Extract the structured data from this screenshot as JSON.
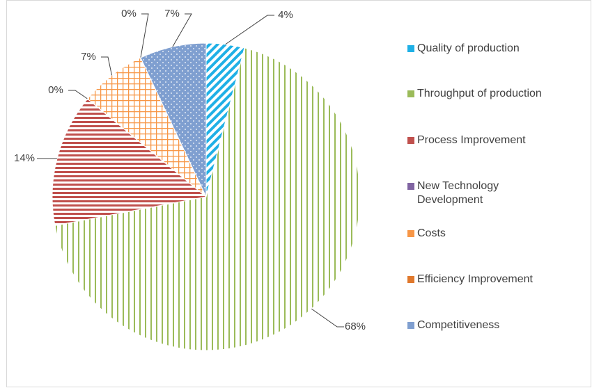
{
  "chart_data": {
    "type": "pie",
    "categories": [
      "Quality of production",
      "Throughput of production",
      "Process Improvement",
      "New Technology Development",
      "Costs",
      "Efficiency Improvement",
      "Competitiveness"
    ],
    "values": [
      4,
      68,
      14,
      0,
      7,
      0,
      7
    ],
    "value_labels": [
      "4%",
      "68%",
      "14%",
      "0%",
      "7%",
      "0%",
      "7%"
    ],
    "colors": [
      "#1fb0e6",
      "#9bbb59",
      "#c0504d",
      "#8064a2",
      "#f79646",
      "#e0782c",
      "#7f9fd0"
    ],
    "legend": "right"
  }
}
